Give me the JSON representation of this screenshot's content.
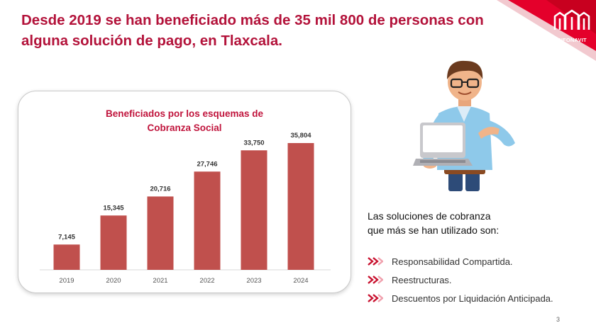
{
  "headline": "Desde 2019 se han beneficiado más de 35 mil 800 de personas con alguna solución de pago, en Tlaxcala.",
  "brand": {
    "name": "INFONAVIT",
    "accent_color": "#e4002b"
  },
  "chart_data": {
    "type": "bar",
    "title_line1": "Beneficiados por los esquemas de",
    "title_line2": "Cobranza Social",
    "categories": [
      "2019",
      "2020",
      "2021",
      "2022",
      "2023",
      "2024"
    ],
    "values": [
      7145,
      15345,
      20716,
      27746,
      33750,
      35804
    ],
    "value_labels": [
      "7,145",
      "15,345",
      "20,716",
      "27,746",
      "33,750",
      "35,804"
    ],
    "ylim": [
      0,
      40000
    ],
    "bar_color": "#c0504d",
    "grid": false,
    "legend": "none"
  },
  "illustration": {
    "icon": "person-with-laptop-icon"
  },
  "solutions": {
    "heading_line1": "Las soluciones de cobranza",
    "heading_line2": "que más se han utilizado son:",
    "items": [
      "Responsabilidad Compartida.",
      "Reestructuras.",
      "Descuentos por Liquidación Anticipada."
    ],
    "bullet_icon": "double-chevron-right-icon",
    "bullet_color": "#c8102e"
  },
  "page_number": "3"
}
